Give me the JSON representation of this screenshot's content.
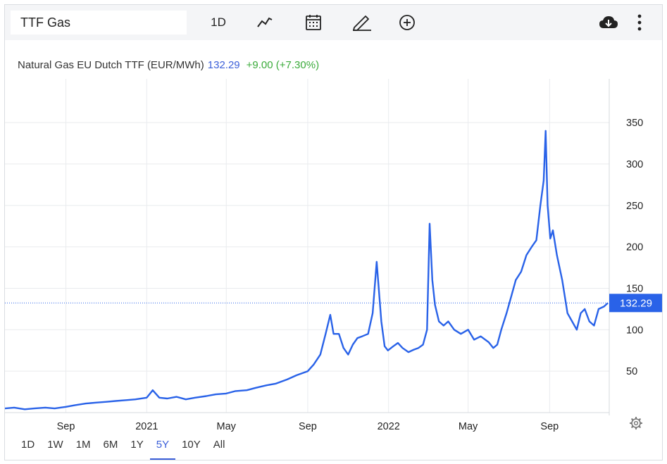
{
  "search": {
    "value": "TTF Gas"
  },
  "toolbar": {
    "interval_label": "1D"
  },
  "header": {
    "title": "Natural Gas EU Dutch TTF (EUR/MWh)",
    "price": "132.29",
    "change": "+9.00 (+7.30%)"
  },
  "price_tag": "132.29",
  "periods": [
    "1D",
    "1W",
    "1M",
    "6M",
    "1Y",
    "5Y",
    "10Y",
    "All"
  ],
  "active_period": "5Y",
  "colors": {
    "line": "#2962e8",
    "accent": "#3b5fd9",
    "up": "#3bab3b",
    "tag": "#2962e8",
    "grid": "#e9ebee"
  },
  "icons": [
    "line-chart-icon",
    "calendar-icon",
    "pencil-icon",
    "plus-circle-icon",
    "cloud-download-icon",
    "more-vertical-icon",
    "settings-gear-icon"
  ],
  "chart_data": {
    "type": "line",
    "title": "Natural Gas EU Dutch TTF (EUR/MWh)",
    "xlabel": "",
    "ylabel": "",
    "ylim": [
      0,
      390
    ],
    "xlim": [
      "2020-06-01",
      "2022-11-30"
    ],
    "yticks": [
      50,
      100,
      150,
      200,
      250,
      300,
      350
    ],
    "xticks": [
      {
        "date": "2020-09-01",
        "label": "Sep"
      },
      {
        "date": "2021-01-01",
        "label": "2021"
      },
      {
        "date": "2021-05-01",
        "label": "May"
      },
      {
        "date": "2021-09-01",
        "label": "Sep"
      },
      {
        "date": "2022-01-01",
        "label": "2022"
      },
      {
        "date": "2022-05-01",
        "label": "May"
      },
      {
        "date": "2022-09-01",
        "label": "Sep"
      }
    ],
    "current_value": 132.29,
    "grid": true,
    "series": [
      {
        "x": [
          "2020-06-01",
          "2020-06-15",
          "2020-07-01",
          "2020-07-15",
          "2020-08-01",
          "2020-08-15",
          "2020-09-01",
          "2020-09-15",
          "2020-10-01",
          "2020-10-15",
          "2020-11-01",
          "2020-11-15",
          "2020-12-01",
          "2020-12-15",
          "2021-01-01",
          "2021-01-05",
          "2021-01-10",
          "2021-01-20",
          "2021-02-01",
          "2021-02-15",
          "2021-03-01",
          "2021-03-15",
          "2021-04-01",
          "2021-04-15",
          "2021-05-01",
          "2021-05-15",
          "2021-06-01",
          "2021-06-15",
          "2021-07-01",
          "2021-07-15",
          "2021-08-01",
          "2021-08-15",
          "2021-09-01",
          "2021-09-10",
          "2021-09-20",
          "2021-09-28",
          "2021-10-05",
          "2021-10-10",
          "2021-10-18",
          "2021-10-25",
          "2021-11-01",
          "2021-11-08",
          "2021-11-15",
          "2021-11-22",
          "2021-12-01",
          "2021-12-08",
          "2021-12-14",
          "2021-12-21",
          "2021-12-26",
          "2021-12-31",
          "2022-01-08",
          "2022-01-15",
          "2022-01-22",
          "2022-01-31",
          "2022-02-08",
          "2022-02-15",
          "2022-02-22",
          "2022-02-28",
          "2022-03-04",
          "2022-03-08",
          "2022-03-12",
          "2022-03-18",
          "2022-03-25",
          "2022-04-01",
          "2022-04-10",
          "2022-04-20",
          "2022-05-01",
          "2022-05-10",
          "2022-05-20",
          "2022-06-01",
          "2022-06-08",
          "2022-06-14",
          "2022-06-20",
          "2022-06-28",
          "2022-07-05",
          "2022-07-12",
          "2022-07-20",
          "2022-07-28",
          "2022-08-05",
          "2022-08-12",
          "2022-08-18",
          "2022-08-23",
          "2022-08-26",
          "2022-08-29",
          "2022-09-02",
          "2022-09-06",
          "2022-09-12",
          "2022-09-20",
          "2022-09-28",
          "2022-10-05",
          "2022-10-12",
          "2022-10-18",
          "2022-10-24",
          "2022-10-31",
          "2022-11-07",
          "2022-11-14",
          "2022-11-22",
          "2022-11-28"
        ],
        "values": [
          5,
          6,
          4,
          5,
          6,
          5,
          7,
          9,
          11,
          12,
          13,
          14,
          15,
          16,
          18,
          22,
          27,
          18,
          17,
          19,
          16,
          18,
          20,
          22,
          23,
          26,
          27,
          30,
          33,
          35,
          40,
          45,
          50,
          58,
          70,
          95,
          118,
          95,
          95,
          78,
          70,
          82,
          90,
          92,
          95,
          120,
          182,
          110,
          80,
          75,
          80,
          84,
          78,
          73,
          76,
          78,
          82,
          100,
          228,
          160,
          130,
          110,
          105,
          110,
          100,
          95,
          100,
          88,
          92,
          85,
          78,
          82,
          100,
          120,
          140,
          160,
          170,
          190,
          200,
          208,
          250,
          280,
          340,
          250,
          210,
          220,
          190,
          160,
          120,
          110,
          100,
          120,
          125,
          110,
          105,
          125,
          128,
          132.29
        ]
      }
    ]
  }
}
